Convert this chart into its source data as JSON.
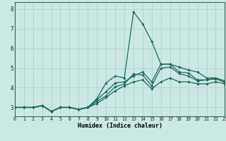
{
  "xlabel": "Humidex (Indice chaleur)",
  "bg_color": "#cce8e4",
  "grid_color": "#aad4cc",
  "line_color": "#1a6b5a",
  "x_ticks": [
    0,
    1,
    2,
    3,
    4,
    5,
    6,
    7,
    8,
    9,
    10,
    11,
    12,
    13,
    14,
    15,
    16,
    17,
    18,
    19,
    20,
    21,
    22,
    23
  ],
  "y_ticks": [
    3,
    4,
    5,
    6,
    7,
    8
  ],
  "xlim": [
    0,
    23
  ],
  "ylim": [
    2.55,
    8.35
  ],
  "series": [
    [
      3.0,
      3.0,
      3.0,
      3.1,
      2.8,
      3.0,
      3.0,
      2.9,
      3.0,
      3.4,
      3.8,
      4.25,
      4.3,
      4.6,
      4.8,
      4.3,
      5.2,
      5.2,
      4.8,
      4.75,
      4.4,
      4.4,
      4.5,
      4.35
    ],
    [
      3.0,
      3.0,
      3.0,
      3.1,
      2.8,
      3.0,
      3.0,
      2.9,
      3.0,
      3.3,
      3.6,
      4.05,
      4.2,
      4.7,
      4.65,
      4.1,
      5.0,
      5.05,
      4.72,
      4.6,
      4.35,
      4.4,
      4.45,
      4.3
    ],
    [
      3.0,
      3.0,
      3.0,
      3.1,
      2.8,
      3.0,
      3.0,
      2.9,
      3.0,
      3.2,
      3.5,
      3.85,
      4.1,
      4.3,
      4.4,
      3.95,
      4.3,
      4.5,
      4.3,
      4.3,
      4.2,
      4.2,
      4.3,
      4.2
    ],
    [
      3.0,
      3.0,
      3.0,
      3.1,
      2.8,
      3.0,
      3.0,
      2.9,
      3.0,
      3.45,
      4.25,
      4.6,
      4.5,
      7.85,
      7.25,
      6.35,
      5.2,
      5.2,
      5.05,
      4.9,
      4.8,
      4.5,
      4.5,
      4.25
    ]
  ]
}
